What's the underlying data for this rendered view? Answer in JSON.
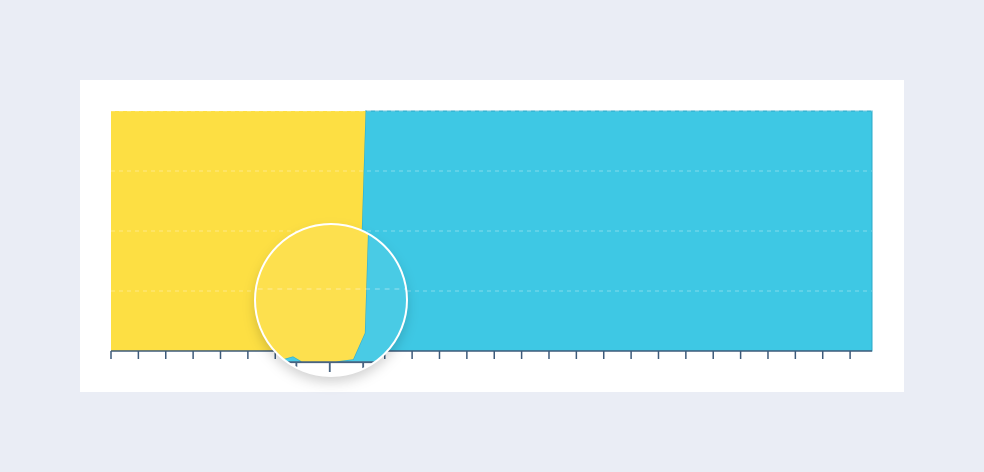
{
  "chart_data": {
    "type": "area",
    "stacked": true,
    "x": [
      0,
      2,
      4,
      6,
      6.6,
      6.9,
      7.2,
      8,
      8.7,
      9.05,
      9.3,
      12,
      16,
      20,
      24,
      27.8
    ],
    "series": [
      {
        "name": null,
        "color": "#3ec8e4",
        "values": [
          0,
          0,
          0,
          0,
          1,
          2,
          0,
          0,
          1,
          10,
          100,
          100,
          100,
          100,
          100,
          100
        ]
      },
      {
        "name": null,
        "color": "#fddf43",
        "values": [
          100,
          100,
          100,
          100,
          99,
          98,
          100,
          100,
          99,
          90,
          0,
          0,
          0,
          0,
          0,
          0
        ]
      }
    ],
    "xlim": [
      0,
      27.8
    ],
    "xticks": [
      0,
      1,
      2,
      3,
      4,
      5,
      6,
      7,
      8,
      9,
      10,
      11,
      12,
      13,
      14,
      15,
      16,
      17,
      18,
      19,
      20,
      21,
      22,
      23,
      24,
      25,
      26,
      27
    ],
    "ylim": [
      0,
      100
    ],
    "yticks": [
      0,
      25,
      50,
      75,
      100
    ],
    "grid": true
  }
}
